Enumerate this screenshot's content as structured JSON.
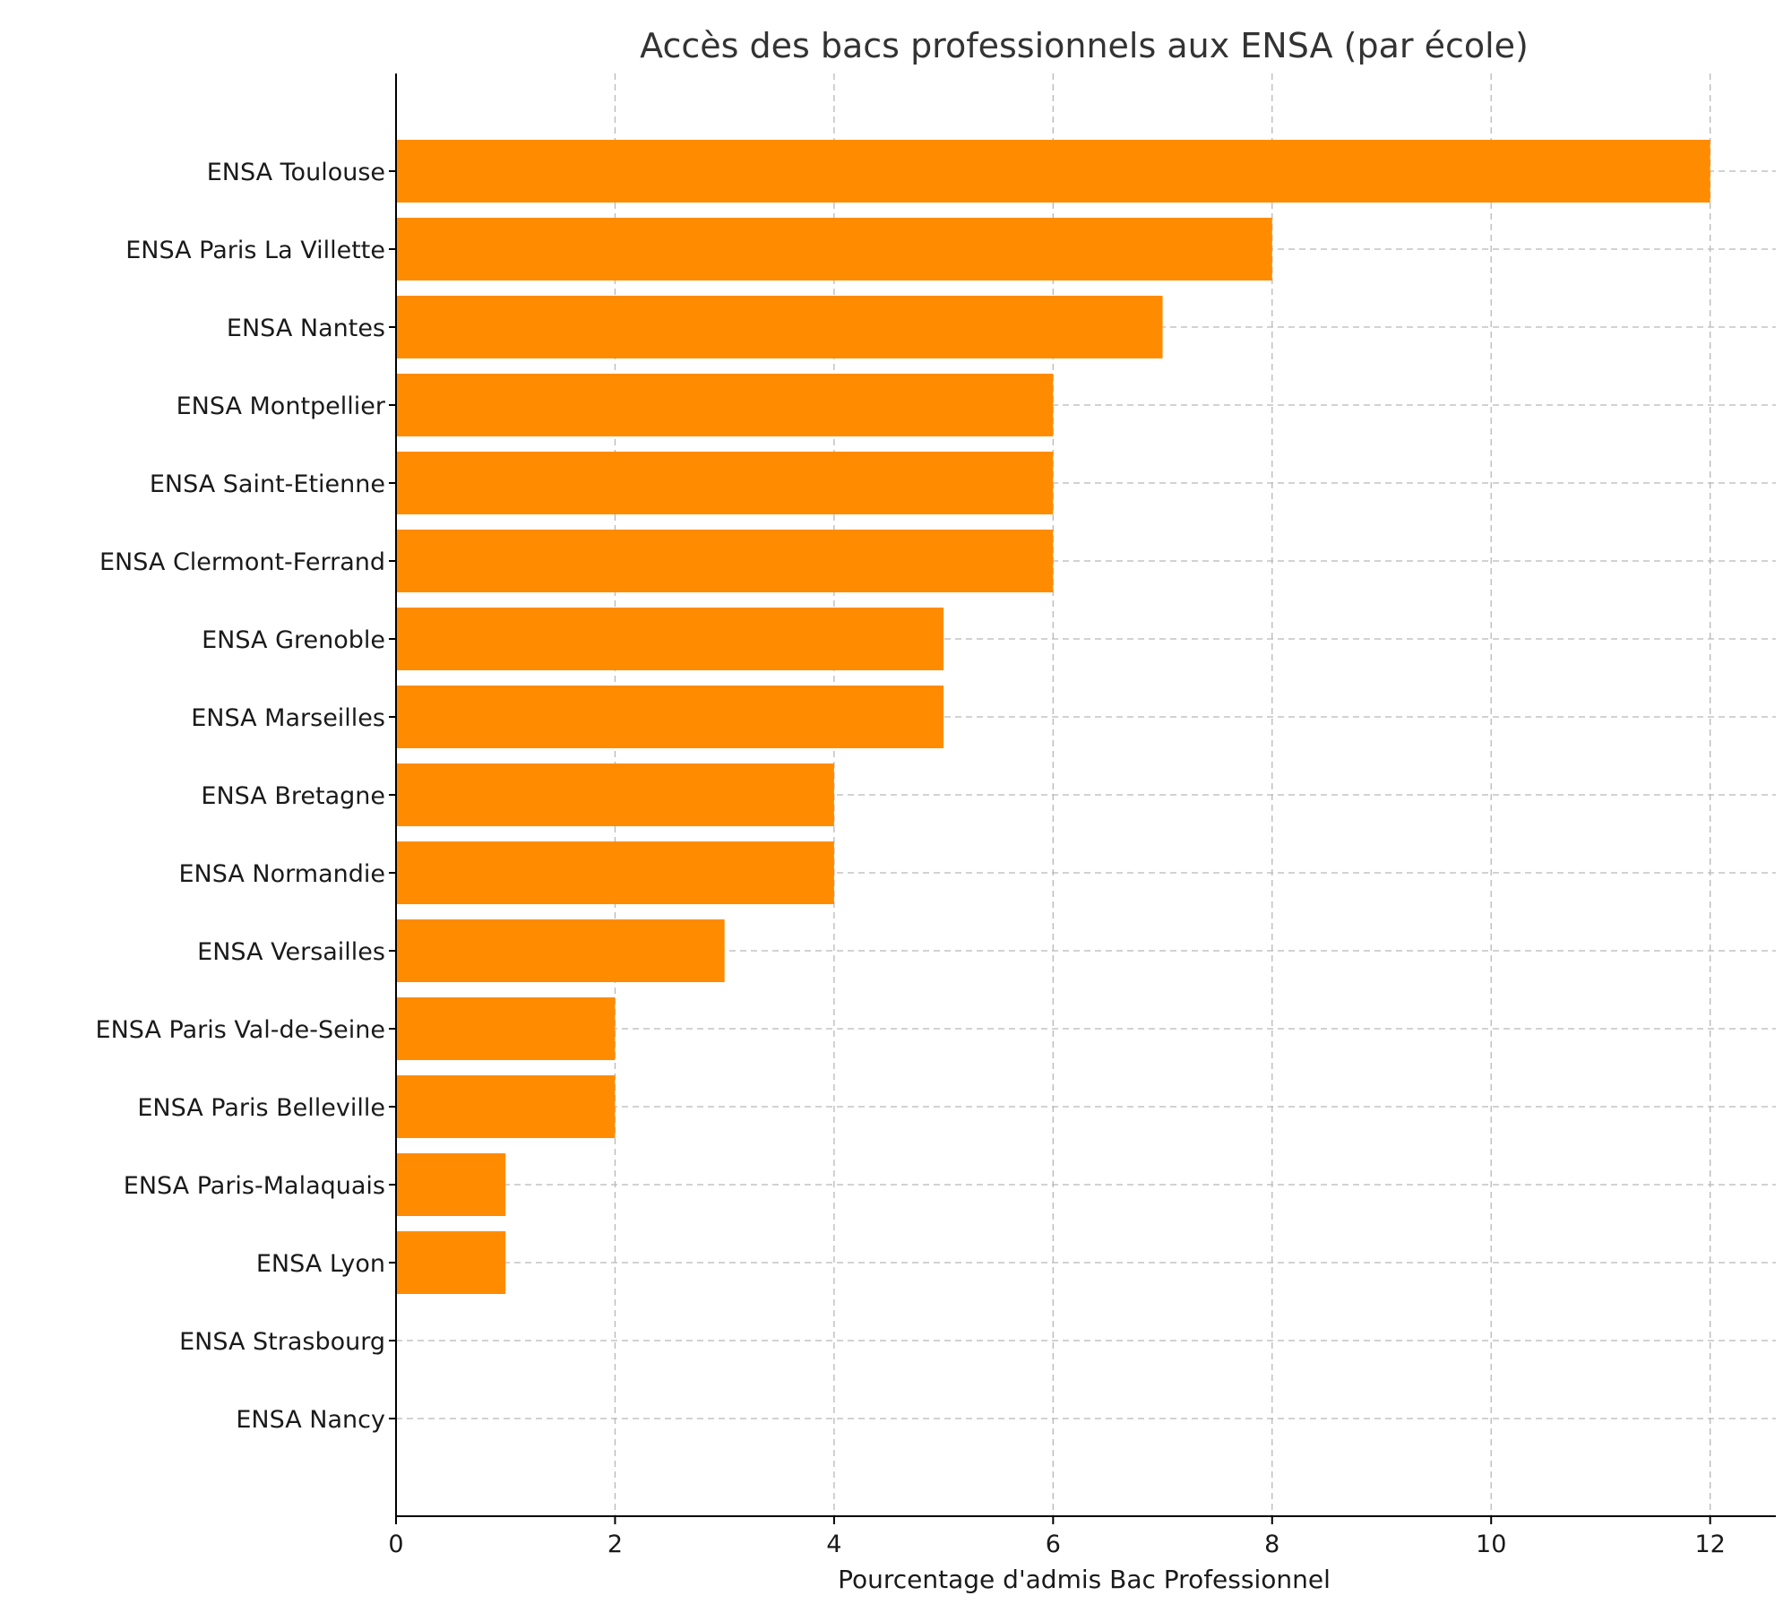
{
  "chart_data": {
    "type": "bar",
    "orientation": "horizontal",
    "title": "Accès des bacs professionnels aux ENSA (par école)",
    "xlabel": "Pourcentage d'admis Bac Professionnel",
    "ylabel": "",
    "xlim": [
      0,
      12.6
    ],
    "xticks": [
      0,
      2,
      4,
      6,
      8,
      10,
      12
    ],
    "grid": true,
    "bar_color": "#ff8c00",
    "categories": [
      "ENSA Toulouse",
      "ENSA Paris La Villette",
      "ENSA Nantes",
      "ENSA Montpellier",
      "ENSA Saint-Etienne",
      "ENSA Clermont-Ferrand",
      "ENSA Grenoble",
      "ENSA Marseilles",
      "ENSA Bretagne",
      "ENSA Normandie",
      "ENSA Versailles",
      "ENSA Paris Val-de-Seine",
      "ENSA Paris Belleville",
      "ENSA Paris-Malaquais",
      "ENSA Lyon",
      "ENSA Strasbourg",
      "ENSA Nancy"
    ],
    "values": [
      12,
      8,
      7,
      6,
      6,
      6,
      5,
      5,
      4,
      4,
      3,
      2,
      2,
      1,
      1,
      0,
      0
    ]
  }
}
